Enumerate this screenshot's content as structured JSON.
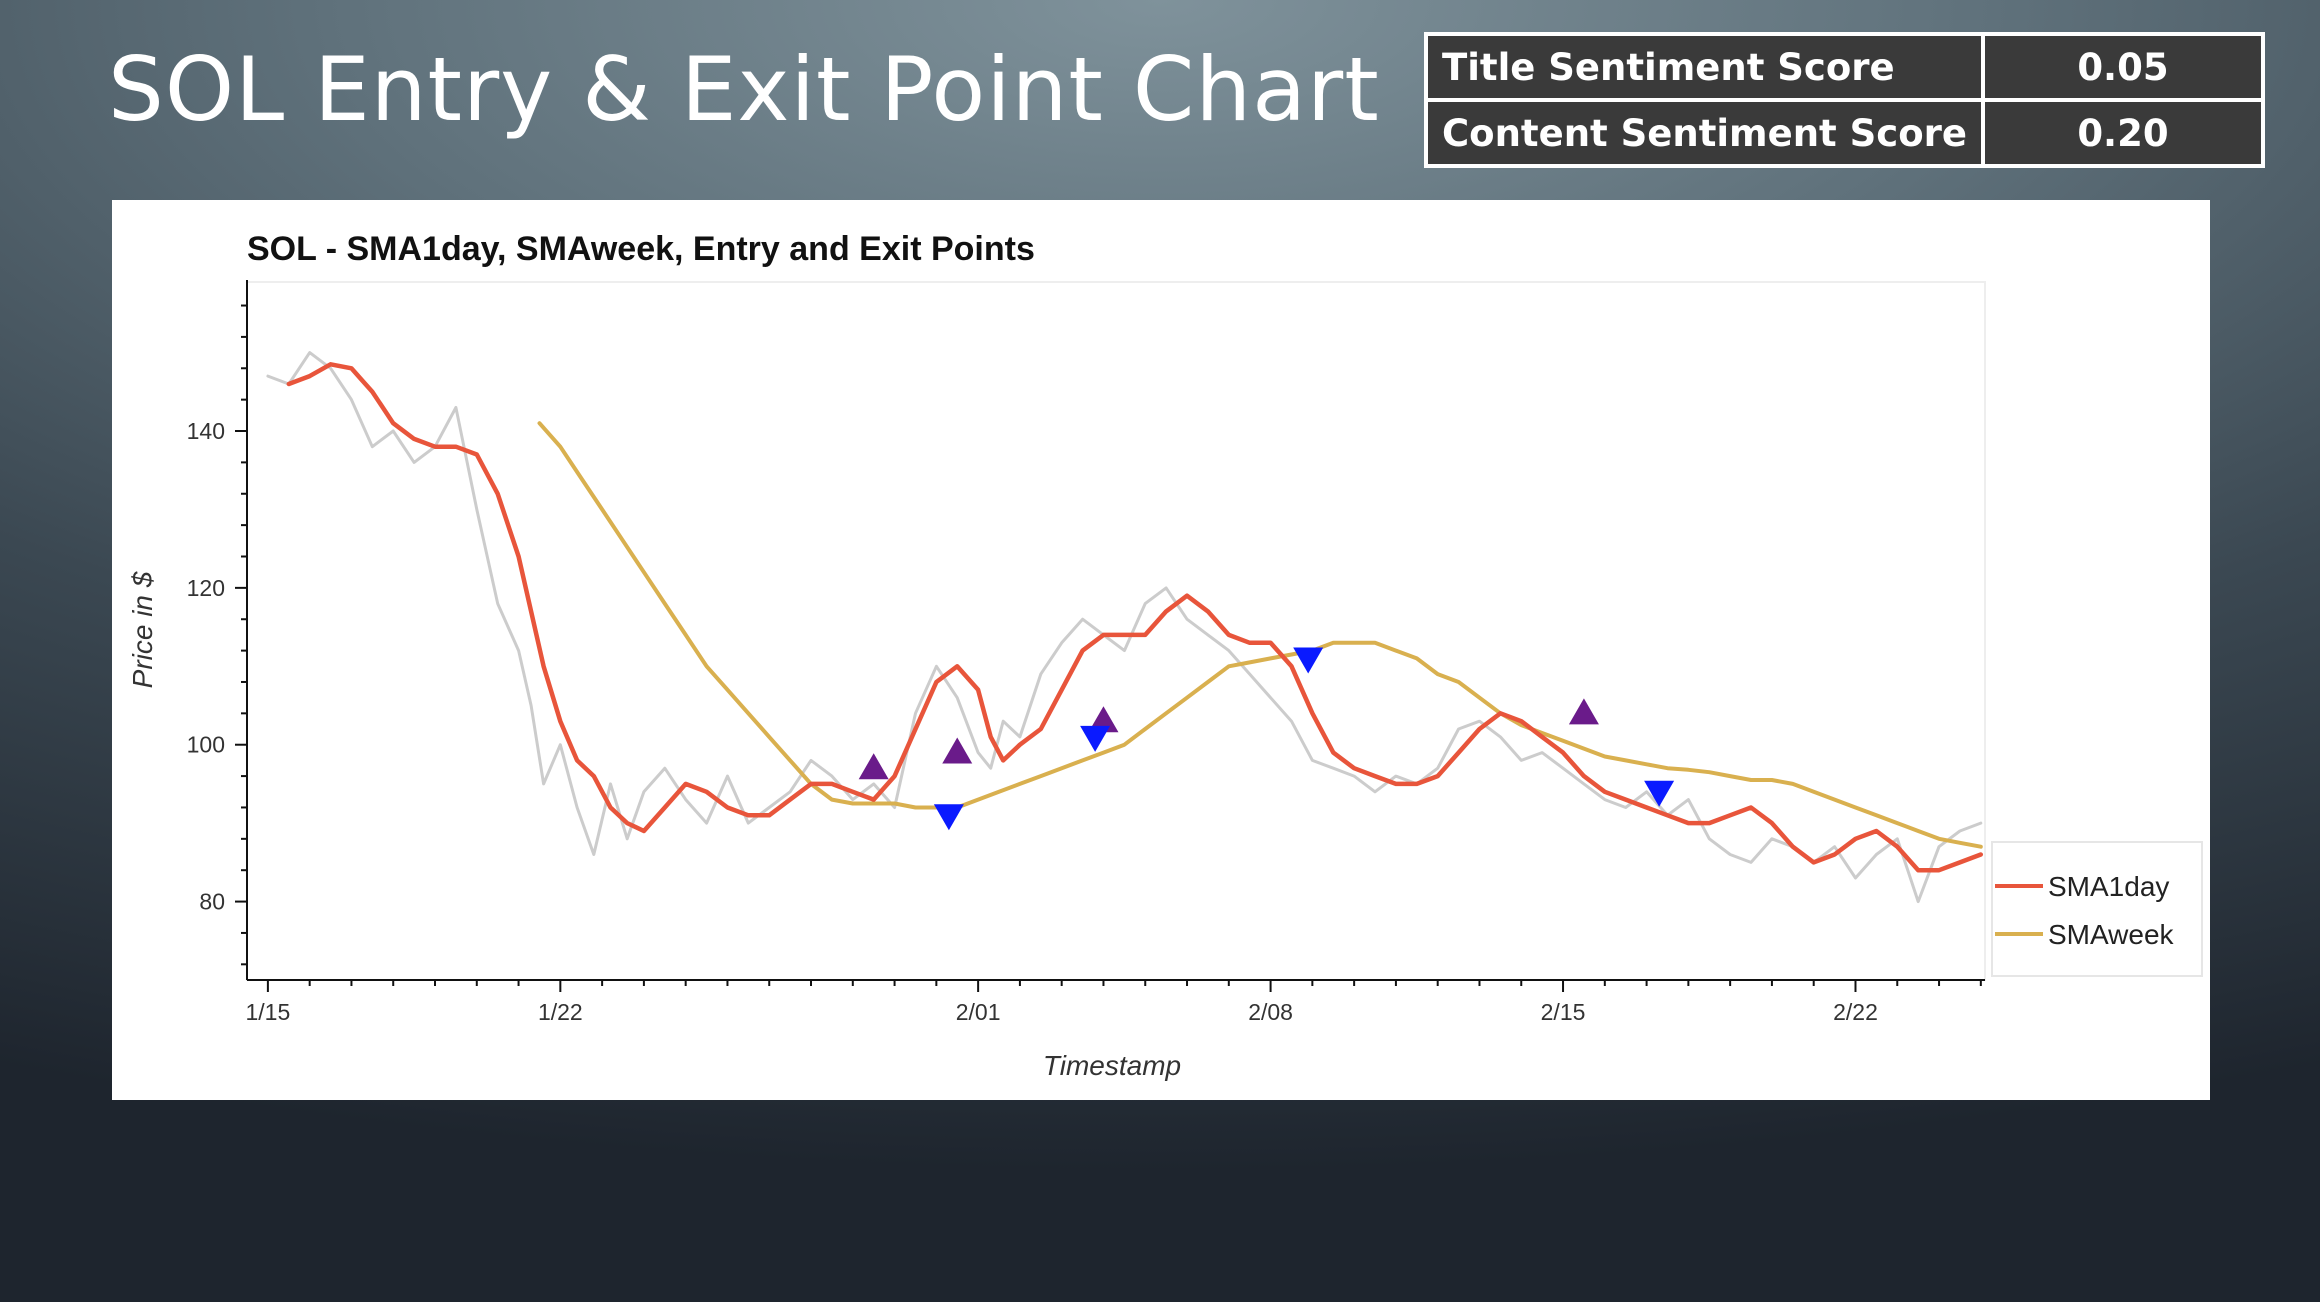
{
  "slide": {
    "title": "SOL Entry & Exit Point Chart"
  },
  "scores": [
    {
      "label": "Title Sentiment Score",
      "value": "0.05"
    },
    {
      "label": "Content Sentiment Score",
      "value": "0.20"
    }
  ],
  "chart_data": {
    "type": "line",
    "title": "SOL - SMA1day, SMAweek, Entry and Exit Points",
    "xlabel": "Timestamp",
    "ylabel": "Price in $",
    "x_ticks": [
      "1/15",
      "1/22",
      "2/01",
      "2/08",
      "2/15",
      "2/22"
    ],
    "x_tick_days": [
      0,
      7,
      17,
      24,
      31,
      38
    ],
    "xlim_days": [
      -0.5,
      41.1
    ],
    "y_ticks": [
      80,
      100,
      120,
      140
    ],
    "ylim": [
      70,
      159
    ],
    "grid": false,
    "legend": {
      "placement": "right",
      "entries": [
        "SMA1day",
        "SMAweek"
      ]
    },
    "colors": {
      "price": "#cccccc",
      "SMA1day": "#e8553b",
      "SMAweek": "#d9b04f",
      "entry": "#6a1b8a",
      "exit": "#0a1aff"
    },
    "series": [
      {
        "name": "price",
        "x_days": [
          0,
          0.5,
          1,
          1.5,
          2,
          2.5,
          3,
          3.5,
          4,
          4.5,
          5,
          5.5,
          6,
          6.3,
          6.6,
          7,
          7.4,
          7.8,
          8.2,
          8.6,
          9,
          9.5,
          10,
          10.5,
          11,
          11.5,
          12,
          12.5,
          13,
          13.5,
          14,
          14.5,
          15,
          15.5,
          16,
          16.5,
          17,
          17.3,
          17.6,
          18,
          18.5,
          19,
          19.5,
          20,
          20.5,
          21,
          21.5,
          22,
          22.5,
          23,
          23.5,
          24,
          24.5,
          25,
          25.5,
          26,
          26.5,
          27,
          27.5,
          28,
          28.5,
          29,
          29.5,
          30,
          30.5,
          31,
          31.5,
          32,
          32.5,
          33,
          33.5,
          34,
          34.5,
          35,
          35.5,
          36,
          36.5,
          37,
          37.5,
          38,
          38.5,
          39,
          39.5,
          40,
          40.5,
          41
        ],
        "values": [
          147,
          146,
          150,
          148,
          144,
          138,
          140,
          136,
          138,
          143,
          130,
          118,
          112,
          105,
          95,
          100,
          92,
          86,
          95,
          88,
          94,
          97,
          93,
          90,
          96,
          90,
          92,
          94,
          98,
          96,
          93,
          95,
          92,
          104,
          110,
          106,
          99,
          97,
          103,
          101,
          109,
          113,
          116,
          114,
          112,
          118,
          120,
          116,
          114,
          112,
          109,
          106,
          103,
          98,
          97,
          96,
          94,
          96,
          95,
          97,
          102,
          103,
          101,
          98,
          99,
          97,
          95,
          93,
          92,
          94,
          91,
          93,
          88,
          86,
          85,
          88,
          87,
          85,
          87,
          83,
          86,
          88,
          80,
          87,
          89,
          90
        ],
        "markers": false
      },
      {
        "name": "SMA1day",
        "x_days": [
          0.5,
          1,
          1.5,
          2,
          2.5,
          3,
          3.5,
          4,
          4.5,
          5,
          5.5,
          6,
          6.3,
          6.6,
          7,
          7.4,
          7.8,
          8.2,
          8.6,
          9,
          9.5,
          10,
          10.5,
          11,
          11.5,
          12,
          12.5,
          13,
          13.5,
          14,
          14.5,
          15,
          15.5,
          16,
          16.5,
          17,
          17.3,
          17.6,
          18,
          18.5,
          19,
          19.5,
          20,
          20.5,
          21,
          21.5,
          22,
          22.5,
          23,
          23.5,
          24,
          24.5,
          25,
          25.5,
          26,
          26.5,
          27,
          27.5,
          28,
          28.5,
          29,
          29.5,
          30,
          30.5,
          31,
          31.5,
          32,
          32.5,
          33,
          33.5,
          34,
          34.5,
          35,
          35.5,
          36,
          36.5,
          37,
          37.5,
          38,
          38.5,
          39,
          39.5,
          40,
          40.5,
          41
        ],
        "values": [
          146,
          147,
          148.5,
          148,
          145,
          141,
          139,
          138,
          138,
          137,
          132,
          124,
          117,
          110,
          103,
          98,
          96,
          92,
          90,
          89,
          92,
          95,
          94,
          92,
          91,
          91,
          93,
          95,
          95,
          94,
          93,
          96,
          102,
          108,
          110,
          107,
          101,
          98,
          100,
          102,
          107,
          112,
          114,
          114,
          114,
          117,
          119,
          117,
          114,
          113,
          113,
          110,
          104,
          99,
          97,
          96,
          95,
          95,
          96,
          99,
          102,
          104,
          103,
          101,
          99,
          96,
          94,
          93,
          92,
          91,
          90,
          90,
          91,
          92,
          90,
          87,
          85,
          86,
          88,
          89,
          87,
          84,
          84,
          85,
          86
        ],
        "markers": false
      },
      {
        "name": "SMAweek",
        "x_days": [
          6.5,
          7,
          7.5,
          8,
          8.5,
          9,
          9.5,
          10,
          10.5,
          11,
          11.5,
          12,
          12.5,
          13,
          13.5,
          14,
          14.5,
          15,
          15.5,
          16,
          16.5,
          17,
          17.5,
          18,
          18.5,
          19,
          19.5,
          20,
          20.5,
          21,
          21.5,
          22,
          22.5,
          23,
          23.5,
          24,
          24.5,
          25,
          25.5,
          26,
          26.5,
          27,
          27.5,
          28,
          28.5,
          29,
          29.5,
          30,
          30.5,
          31,
          31.5,
          32,
          32.5,
          33,
          33.5,
          34,
          34.5,
          35,
          35.5,
          36,
          36.5,
          37,
          37.5,
          38,
          38.5,
          39,
          39.5,
          40,
          40.5,
          41
        ],
        "values": [
          141,
          138,
          134,
          130,
          126,
          122,
          118,
          114,
          110,
          107,
          104,
          101,
          98,
          95,
          93,
          92.5,
          92.5,
          92.5,
          92,
          92,
          92,
          93,
          94,
          95,
          96,
          97,
          98,
          99,
          100,
          102,
          104,
          106,
          108,
          110,
          110.5,
          111,
          111.5,
          112,
          113,
          113,
          113,
          112,
          111,
          109,
          108,
          106,
          104,
          102.5,
          101.5,
          100.5,
          99.5,
          98.5,
          98,
          97.5,
          97,
          96.8,
          96.5,
          96,
          95.5,
          95.5,
          95,
          94,
          93,
          92,
          91,
          90,
          89,
          88,
          87.5,
          87
        ],
        "markers": false
      },
      {
        "name": "entry",
        "x_days": [
          14.5,
          16.5,
          20,
          31.5
        ],
        "values": [
          97,
          99,
          103,
          104
        ],
        "markers": true
      },
      {
        "name": "exit",
        "x_days": [
          16.3,
          19.8,
          24.9,
          33.3
        ],
        "values": [
          91,
          101,
          111,
          94
        ],
        "markers": true
      }
    ]
  }
}
